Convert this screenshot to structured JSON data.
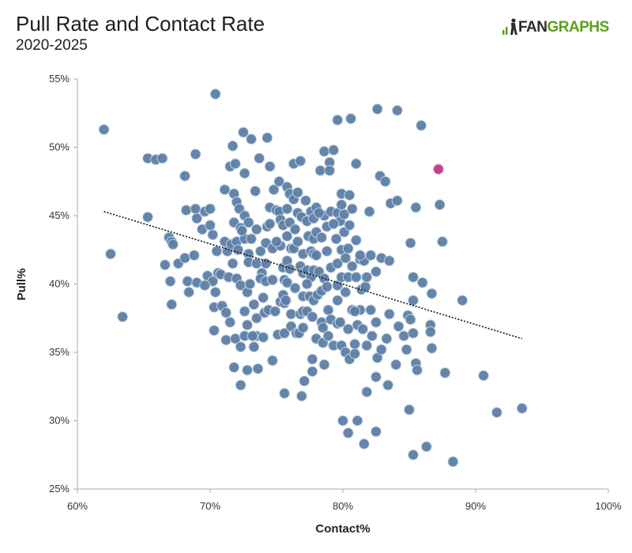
{
  "header": {
    "title": "Pull Rate and Contact Rate",
    "subtitle": "2020-2025"
  },
  "logo": {
    "part1": "FAN",
    "part2": "GRAPHS",
    "brand_color": "#5aa11c"
  },
  "colors": {
    "point": "#5b7ea6",
    "point_stroke": "#c9d3e0",
    "highlight": "#c2418f",
    "trend": "#111111",
    "axis": "#aaaaaa"
  },
  "chart_data": {
    "type": "scatter",
    "title": "Pull Rate and Contact Rate",
    "subtitle": "2020-2025",
    "xlabel": "Contact%",
    "ylabel": "Pull%",
    "xlim": [
      60,
      100
    ],
    "ylim": [
      25,
      55
    ],
    "xticks": [
      "60%",
      "70%",
      "80%",
      "90%",
      "100%"
    ],
    "yticks": [
      "25%",
      "30%",
      "35%",
      "40%",
      "45%",
      "50%",
      "55%"
    ],
    "grid": false,
    "trendline": {
      "x": [
        62.0,
        93.5
      ],
      "y": [
        45.3,
        36.0
      ]
    },
    "highlight": {
      "x": 87.2,
      "y": 48.4
    },
    "points": [
      [
        62.0,
        51.3
      ],
      [
        62.5,
        42.2
      ],
      [
        63.4,
        37.6
      ],
      [
        65.3,
        44.9
      ],
      [
        65.3,
        49.2
      ],
      [
        65.9,
        49.1
      ],
      [
        66.4,
        49.2
      ],
      [
        66.9,
        43.4
      ],
      [
        67.1,
        43.1
      ],
      [
        67.2,
        42.9
      ],
      [
        66.6,
        41.4
      ],
      [
        67.0,
        40.2
      ],
      [
        67.1,
        38.5
      ],
      [
        67.6,
        41.5
      ],
      [
        68.1,
        47.9
      ],
      [
        68.1,
        41.9
      ],
      [
        68.2,
        45.4
      ],
      [
        68.3,
        40.2
      ],
      [
        68.4,
        39.4
      ],
      [
        68.8,
        42.1
      ],
      [
        68.9,
        49.5
      ],
      [
        68.9,
        45.5
      ],
      [
        69.0,
        44.8
      ],
      [
        69.0,
        40.1
      ],
      [
        69.4,
        44.0
      ],
      [
        69.6,
        45.3
      ],
      [
        69.8,
        40.6
      ],
      [
        70.0,
        45.5
      ],
      [
        70.0,
        44.3
      ],
      [
        70.2,
        43.6
      ],
      [
        70.2,
        40.2
      ],
      [
        70.4,
        39.4
      ],
      [
        70.3,
        38.3
      ],
      [
        70.3,
        36.6
      ],
      [
        70.4,
        53.9
      ],
      [
        70.5,
        42.4
      ],
      [
        70.6,
        40.8
      ],
      [
        70.8,
        40.7
      ],
      [
        70.9,
        38.4
      ],
      [
        71.1,
        46.9
      ],
      [
        71.1,
        43.1
      ],
      [
        71.3,
        42.4
      ],
      [
        71.4,
        40.5
      ],
      [
        71.2,
        37.9
      ],
      [
        71.2,
        35.9
      ],
      [
        71.5,
        48.6
      ],
      [
        71.7,
        50.1
      ],
      [
        71.8,
        46.6
      ],
      [
        71.8,
        44.5
      ],
      [
        71.6,
        42.9
      ],
      [
        71.7,
        41.5
      ],
      [
        71.5,
        37.2
      ],
      [
        71.9,
        48.8
      ],
      [
        72.0,
        46.0
      ],
      [
        72.0,
        43.1
      ],
      [
        72.0,
        40.4
      ],
      [
        71.9,
        36.0
      ],
      [
        71.8,
        33.9
      ],
      [
        72.2,
        45.5
      ],
      [
        72.3,
        44.1
      ],
      [
        72.1,
        42.5
      ],
      [
        72.3,
        39.9
      ],
      [
        72.3,
        35.4
      ],
      [
        72.3,
        32.6
      ],
      [
        72.5,
        51.1
      ],
      [
        72.6,
        48.1
      ],
      [
        72.6,
        45.0
      ],
      [
        72.6,
        43.3
      ],
      [
        72.6,
        38.0
      ],
      [
        72.6,
        36.2
      ],
      [
        72.9,
        44.5
      ],
      [
        72.9,
        42.2
      ],
      [
        72.9,
        41.6
      ],
      [
        72.8,
        39.4
      ],
      [
        72.8,
        37.0
      ],
      [
        72.8,
        33.7
      ],
      [
        73.1,
        50.6
      ],
      [
        73.1,
        43.3
      ],
      [
        73.0,
        40.0
      ],
      [
        73.3,
        38.5
      ],
      [
        73.3,
        35.4
      ],
      [
        73.4,
        46.8
      ],
      [
        73.5,
        44.0
      ],
      [
        73.5,
        41.5
      ],
      [
        73.5,
        37.5
      ],
      [
        73.5,
        36.2
      ],
      [
        73.6,
        33.8
      ],
      [
        73.7,
        49.2
      ],
      [
        73.8,
        42.4
      ],
      [
        73.9,
        40.8
      ],
      [
        73.8,
        40.4
      ],
      [
        74.0,
        39.0
      ],
      [
        74.1,
        37.9
      ],
      [
        74.0,
        36.1
      ],
      [
        74.3,
        50.7
      ],
      [
        74.3,
        44.2
      ],
      [
        74.2,
        43.0
      ],
      [
        74.2,
        41.5
      ],
      [
        74.2,
        40.2
      ],
      [
        74.5,
        48.6
      ],
      [
        74.5,
        45.6
      ],
      [
        74.5,
        44.4
      ],
      [
        74.4,
        38.1
      ],
      [
        74.7,
        42.6
      ],
      [
        74.7,
        40.3
      ],
      [
        74.8,
        46.9
      ],
      [
        75.0,
        45.4
      ],
      [
        74.9,
        38.0
      ],
      [
        74.7,
        34.4
      ],
      [
        75.2,
        47.5
      ],
      [
        75.2,
        45.3
      ],
      [
        75.3,
        44.7
      ],
      [
        75.3,
        42.8
      ],
      [
        75.3,
        38.7
      ],
      [
        75.1,
        36.3
      ],
      [
        75.5,
        44.3
      ],
      [
        75.5,
        41.2
      ],
      [
        75.6,
        40.3
      ],
      [
        75.5,
        39.2
      ],
      [
        75.6,
        38.6
      ],
      [
        75.6,
        36.4
      ],
      [
        75.8,
        47.1
      ],
      [
        75.8,
        45.5
      ],
      [
        75.8,
        43.5
      ],
      [
        75.8,
        41.7
      ],
      [
        75.8,
        40.1
      ],
      [
        75.7,
        38.8
      ],
      [
        75.6,
        32.0
      ],
      [
        76.0,
        46.6
      ],
      [
        76.0,
        44.5
      ],
      [
        76.1,
        42.6
      ],
      [
        76.0,
        41.1
      ],
      [
        76.1,
        37.8
      ],
      [
        76.1,
        36.9
      ],
      [
        76.3,
        48.8
      ],
      [
        76.3,
        46.2
      ],
      [
        76.4,
        44.0
      ],
      [
        76.3,
        42.6
      ],
      [
        76.4,
        39.7
      ],
      [
        76.5,
        36.4
      ],
      [
        76.6,
        45.2
      ],
      [
        76.6,
        43.1
      ],
      [
        76.8,
        41.3
      ],
      [
        76.8,
        37.8
      ],
      [
        76.7,
        36.4
      ],
      [
        76.8,
        49.0
      ],
      [
        76.9,
        44.9
      ],
      [
        77.0,
        42.2
      ],
      [
        77.0,
        40.8
      ],
      [
        77.0,
        39.1
      ],
      [
        77.0,
        38.0
      ],
      [
        77.0,
        36.8
      ],
      [
        77.1,
        32.9
      ],
      [
        76.9,
        31.8
      ],
      [
        77.2,
        46.1
      ],
      [
        77.3,
        44.6
      ],
      [
        77.3,
        41.0
      ],
      [
        77.3,
        38.0
      ],
      [
        77.4,
        43.5
      ],
      [
        77.6,
        45.3
      ],
      [
        77.6,
        42.4
      ],
      [
        77.6,
        40.5
      ],
      [
        77.5,
        39.1
      ],
      [
        77.7,
        37.6
      ],
      [
        77.7,
        34.5
      ],
      [
        77.8,
        44.8
      ],
      [
        77.8,
        43.3
      ],
      [
        77.8,
        42.2
      ],
      [
        77.8,
        41.0
      ],
      [
        77.8,
        38.8
      ],
      [
        77.7,
        33.6
      ],
      [
        78.0,
        45.6
      ],
      [
        78.0,
        43.8
      ],
      [
        78.0,
        42.1
      ],
      [
        78.2,
        40.9
      ],
      [
        78.1,
        39.2
      ],
      [
        78.0,
        36.0
      ],
      [
        78.3,
        48.3
      ],
      [
        78.4,
        43.4
      ],
      [
        78.4,
        39.5
      ],
      [
        78.4,
        37.2
      ],
      [
        78.6,
        49.7
      ],
      [
        78.6,
        45.0
      ],
      [
        78.6,
        40.4
      ],
      [
        78.5,
        36.8
      ],
      [
        78.5,
        35.7
      ],
      [
        78.6,
        34.1
      ],
      [
        78.8,
        44.2
      ],
      [
        78.8,
        42.4
      ],
      [
        78.8,
        39.8
      ],
      [
        78.9,
        38.1
      ],
      [
        78.9,
        36.2
      ],
      [
        79.0,
        48.9
      ],
      [
        79.0,
        48.3
      ],
      [
        79.3,
        49.8
      ],
      [
        79.1,
        45.3
      ],
      [
        79.1,
        41.2
      ],
      [
        79.1,
        37.4
      ],
      [
        79.3,
        35.5
      ],
      [
        79.6,
        52.0
      ],
      [
        79.6,
        45.2
      ],
      [
        79.5,
        43.3
      ],
      [
        79.6,
        41.5
      ],
      [
        79.6,
        39.9
      ],
      [
        79.6,
        38.8
      ],
      [
        79.6,
        37.1
      ],
      [
        79.9,
        46.6
      ],
      [
        79.9,
        45.8
      ],
      [
        79.8,
        44.6
      ],
      [
        79.9,
        42.5
      ],
      [
        79.9,
        40.5
      ],
      [
        79.8,
        37.2
      ],
      [
        79.9,
        35.5
      ],
      [
        80.1,
        45.1
      ],
      [
        80.1,
        43.8
      ],
      [
        80.2,
        41.9
      ],
      [
        80.2,
        39.4
      ],
      [
        80.2,
        35.0
      ],
      [
        80.0,
        30.0
      ],
      [
        80.5,
        46.5
      ],
      [
        80.5,
        44.3
      ],
      [
        80.4,
        42.6
      ],
      [
        80.4,
        40.5
      ],
      [
        80.4,
        36.7
      ],
      [
        80.5,
        34.5
      ],
      [
        80.4,
        29.1
      ],
      [
        80.6,
        52.1
      ],
      [
        80.7,
        45.5
      ],
      [
        80.7,
        41.3
      ],
      [
        80.7,
        38.1
      ],
      [
        80.9,
        35.6
      ],
      [
        80.9,
        34.9
      ],
      [
        81.0,
        48.8
      ],
      [
        81.0,
        43.2
      ],
      [
        81.0,
        40.5
      ],
      [
        81.1,
        37.0
      ],
      [
        81.1,
        30.0
      ],
      [
        81.3,
        41.8
      ],
      [
        81.4,
        39.6
      ],
      [
        81.3,
        38.1
      ],
      [
        81.5,
        36.7
      ],
      [
        81.6,
        41.7
      ],
      [
        81.7,
        39.8
      ],
      [
        81.6,
        28.3
      ],
      [
        81.8,
        40.5
      ],
      [
        81.8,
        35.5
      ],
      [
        81.8,
        32.1
      ],
      [
        82.0,
        45.3
      ],
      [
        82.1,
        42.1
      ],
      [
        82.1,
        38.1
      ],
      [
        82.2,
        36.2
      ],
      [
        82.6,
        52.8
      ],
      [
        82.5,
        40.9
      ],
      [
        82.5,
        37.2
      ],
      [
        82.6,
        34.6
      ],
      [
        82.5,
        33.2
      ],
      [
        82.5,
        29.2
      ],
      [
        82.8,
        47.9
      ],
      [
        82.9,
        41.9
      ],
      [
        82.9,
        35.2
      ],
      [
        83.2,
        47.5
      ],
      [
        83.3,
        36.0
      ],
      [
        83.4,
        32.6
      ],
      [
        83.6,
        45.9
      ],
      [
        83.5,
        41.7
      ],
      [
        83.5,
        37.8
      ],
      [
        84.1,
        52.7
      ],
      [
        84.1,
        46.1
      ],
      [
        84.0,
        34.1
      ],
      [
        84.2,
        36.9
      ],
      [
        84.6,
        36.2
      ],
      [
        84.8,
        35.2
      ],
      [
        85.0,
        30.8
      ],
      [
        85.1,
        43.0
      ],
      [
        85.3,
        40.5
      ],
      [
        85.3,
        38.8
      ],
      [
        85.3,
        27.5
      ],
      [
        85.3,
        36.4
      ],
      [
        85.5,
        45.6
      ],
      [
        85.5,
        34.2
      ],
      [
        85.6,
        33.7
      ],
      [
        85.9,
        51.6
      ],
      [
        86.0,
        40.1
      ],
      [
        86.3,
        28.1
      ],
      [
        86.6,
        37.0
      ],
      [
        86.6,
        36.5
      ],
      [
        86.7,
        39.3
      ],
      [
        86.7,
        35.3
      ],
      [
        87.3,
        45.8
      ],
      [
        87.5,
        43.1
      ],
      [
        87.7,
        33.5
      ],
      [
        88.3,
        27.0
      ],
      [
        89.0,
        38.8
      ],
      [
        90.6,
        33.3
      ],
      [
        91.6,
        30.6
      ],
      [
        93.5,
        30.9
      ],
      [
        84.9,
        37.7
      ],
      [
        85.1,
        37.4
      ],
      [
        73.2,
        36.2
      ],
      [
        69.6,
        39.9
      ],
      [
        75.0,
        43.1
      ],
      [
        76.6,
        46.7
      ],
      [
        78.2,
        45.2
      ],
      [
        81.3,
        42.1
      ],
      [
        77.3,
        40.0
      ],
      [
        79.3,
        44.4
      ],
      [
        72.4,
        43.9
      ],
      [
        80.9,
        38.0
      ]
    ]
  }
}
